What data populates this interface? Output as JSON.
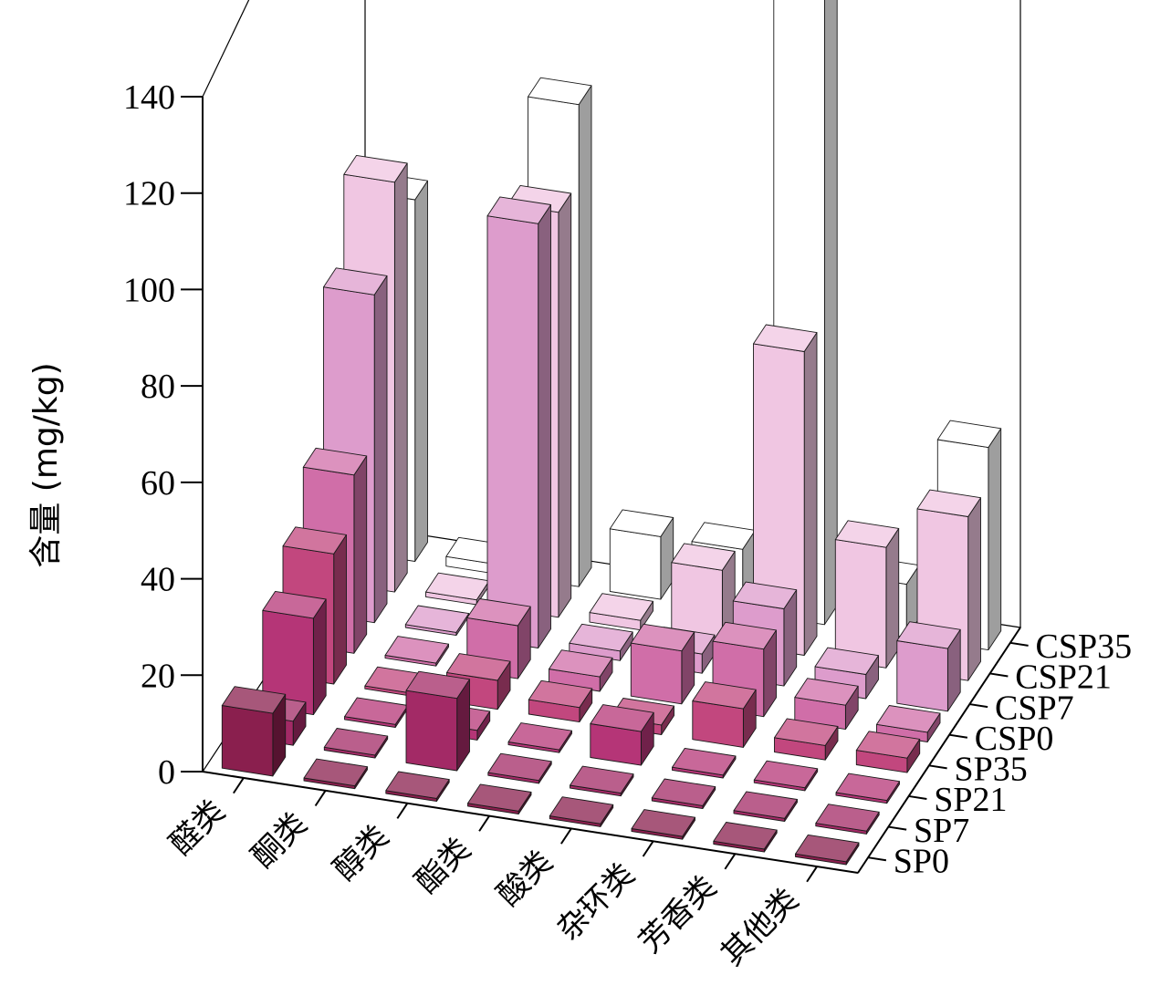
{
  "chart_data": {
    "type": "bar3d",
    "ylabel": "含量 (mg/kg)",
    "ylim": [
      0,
      140
    ],
    "yticks": [
      "0",
      "20",
      "40",
      "60",
      "80",
      "100",
      "120",
      "140"
    ],
    "categories": [
      "醛类",
      "酮类",
      "醇类",
      "酯类",
      "酸类",
      "杂环类",
      "芳香类",
      "其他类"
    ],
    "groups": [
      "SP0",
      "SP7",
      "SP21",
      "SP35",
      "CSP0",
      "CSP7",
      "CSP21",
      "CSP35"
    ],
    "colors": {
      "SP0": "#8a1f4e",
      "SP7": "#a32a66",
      "SP21": "#b53577",
      "SP35": "#c2477e",
      "CSP0": "#d06ea8",
      "CSP7": "#dd9ccc",
      "CSP21": "#f0c6e2",
      "CSP35": "#ffffff"
    },
    "series": [
      {
        "name": "SP0",
        "values": [
          13,
          0,
          0,
          0,
          0,
          0,
          0,
          0
        ]
      },
      {
        "name": "SP7",
        "values": [
          5,
          0,
          15,
          0,
          0,
          0,
          0,
          0
        ]
      },
      {
        "name": "SP21",
        "values": [
          20,
          0,
          2,
          0,
          7,
          0,
          0,
          0
        ]
      },
      {
        "name": "SP35",
        "values": [
          27,
          0,
          6,
          3,
          2,
          8,
          3,
          3
        ]
      },
      {
        "name": "CSP0",
        "values": [
          37,
          0,
          11,
          3,
          11,
          14,
          5,
          2
        ]
      },
      {
        "name": "CSP7",
        "values": [
          68,
          0,
          88,
          2,
          4,
          16,
          5,
          13
        ]
      },
      {
        "name": "CSP21",
        "values": [
          85,
          1,
          84,
          2,
          15,
          63,
          25,
          34
        ]
      },
      {
        "name": "CSP35",
        "values": [
          75,
          2,
          100,
          13,
          13,
          133,
          11,
          42
        ]
      }
    ]
  }
}
